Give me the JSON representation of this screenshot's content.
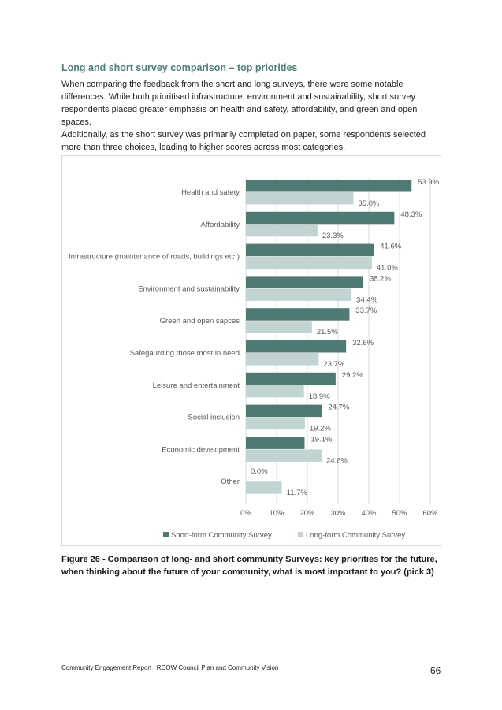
{
  "heading": "Long and short survey comparison – top priorities",
  "paragraphs": [
    "When comparing the feedback from the short and long surveys, there were some notable differences. While both prioritised infrastructure, environment and sustainability, short survey respondents placed greater emphasis on health and safety, affordability, and green and open spaces.",
    "Additionally, as the short survey was primarily completed on paper, some respondents selected more than three choices, leading to higher scores across most categories."
  ],
  "caption": "Figure 26 - Comparison of long- and short community Surveys: key priorities for the future, when thinking about the future of your community, what is most important to you? (pick 3)",
  "footer": {
    "left": "Community Engagement Report | RCOW Council Plan and Community Vision",
    "page": "66"
  },
  "colors": {
    "heading": "#4f7f7a",
    "short": "#4e7a73",
    "long": "#c2d4d1"
  },
  "chart_data": {
    "type": "bar",
    "orientation": "horizontal",
    "categories": [
      "Health and safety",
      "Affordability",
      "Infrastructure (maintenance of roads, buildings etc.)",
      "Environment and sustainability",
      "Green and open sapces",
      "Safegaurding those most in need",
      "Leisure and entertainment",
      "Social inclusion",
      "Economic development",
      "Other"
    ],
    "series": [
      {
        "name": "Short-form Community Survey",
        "values": [
          53.9,
          48.3,
          41.6,
          38.2,
          33.7,
          32.6,
          29.2,
          24.7,
          19.1,
          0.0
        ],
        "labels": [
          "53.9%",
          "48.3%",
          "41.6%",
          "38.2%",
          "33.7%",
          "32.6%",
          "29.2%",
          "24.7%",
          "19.1%",
          "0.0%"
        ]
      },
      {
        "name": "Long-form Community Survey",
        "values": [
          35.0,
          23.3,
          41.0,
          34.4,
          21.5,
          23.7,
          18.9,
          19.2,
          24.6,
          11.7
        ],
        "labels": [
          "35.0%",
          "23.3%",
          "41.0%",
          "34.4%",
          "21.5%",
          "23.7%",
          "18.9%",
          "19.2%",
          "24.6%",
          "11.7%"
        ]
      }
    ],
    "xlim": [
      0,
      60
    ],
    "xticks": [
      "0%",
      "10%",
      "20%",
      "30%",
      "40%",
      "50%",
      "60%"
    ],
    "grid": true,
    "legend_position": "bottom"
  }
}
